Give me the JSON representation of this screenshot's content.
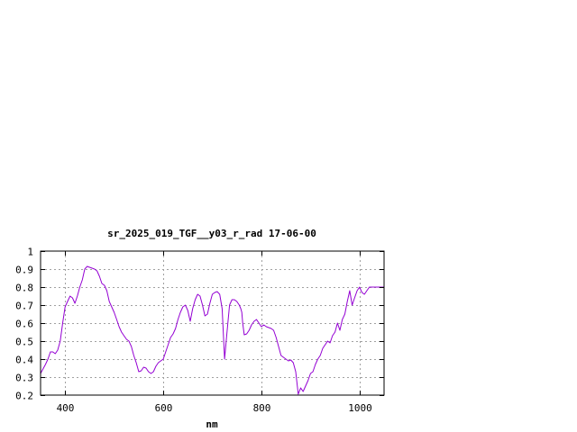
{
  "chart_data": {
    "type": "line",
    "title": "sr_2025_019_TGF__y03_r_rad 17-06-00",
    "xlabel": "nm",
    "ylabel": "",
    "xlim": [
      350,
      1050
    ],
    "ylim": [
      0.2,
      1.0
    ],
    "x_ticks": [
      400,
      600,
      800,
      1000
    ],
    "x_tick_labels": [
      "400",
      "600",
      "800",
      "1000"
    ],
    "y_ticks": [
      0.2,
      0.3,
      0.4,
      0.5,
      0.6,
      0.7,
      0.8,
      0.9,
      1.0
    ],
    "y_tick_labels": [
      "0.2",
      "0.3",
      "0.4",
      "0.5",
      "0.6",
      "0.7",
      "0.8",
      "0.9",
      "1"
    ],
    "grid": true,
    "legend": "none",
    "line_color": "#9400d3",
    "series": [
      {
        "x": [
          350,
          360,
          365,
          370,
          375,
          380,
          385,
          390,
          395,
          400,
          405,
          410,
          415,
          420,
          425,
          430,
          435,
          440,
          445,
          450,
          455,
          460,
          465,
          470,
          475,
          480,
          485,
          490,
          495,
          500,
          505,
          510,
          515,
          520,
          525,
          530,
          535,
          540,
          545,
          550,
          555,
          560,
          565,
          570,
          575,
          580,
          585,
          590,
          595,
          600,
          605,
          610,
          615,
          620,
          625,
          630,
          635,
          640,
          645,
          650,
          655,
          660,
          665,
          670,
          675,
          680,
          685,
          690,
          695,
          700,
          705,
          710,
          715,
          720,
          725,
          730,
          735,
          740,
          745,
          750,
          755,
          758,
          760,
          762,
          765,
          770,
          775,
          780,
          785,
          790,
          795,
          800,
          805,
          810,
          815,
          820,
          825,
          830,
          835,
          840,
          845,
          850,
          855,
          860,
          865,
          870,
          875,
          880,
          885,
          890,
          895,
          900,
          905,
          910,
          915,
          920,
          925,
          930,
          935,
          940,
          945,
          950,
          955,
          960,
          965,
          970,
          975,
          980,
          985,
          990,
          995,
          1000,
          1005,
          1010,
          1015,
          1020,
          1025,
          1030,
          1035,
          1040,
          1045,
          1050
        ],
        "y": [
          0.32,
          0.37,
          0.4,
          0.44,
          0.44,
          0.43,
          0.45,
          0.5,
          0.6,
          0.69,
          0.72,
          0.75,
          0.74,
          0.71,
          0.75,
          0.8,
          0.84,
          0.9,
          0.915,
          0.91,
          0.905,
          0.9,
          0.89,
          0.86,
          0.82,
          0.81,
          0.78,
          0.72,
          0.69,
          0.66,
          0.62,
          0.58,
          0.55,
          0.53,
          0.51,
          0.5,
          0.47,
          0.42,
          0.38,
          0.33,
          0.335,
          0.355,
          0.35,
          0.33,
          0.32,
          0.33,
          0.36,
          0.38,
          0.39,
          0.4,
          0.44,
          0.48,
          0.52,
          0.54,
          0.57,
          0.62,
          0.66,
          0.69,
          0.7,
          0.67,
          0.61,
          0.68,
          0.73,
          0.76,
          0.75,
          0.7,
          0.64,
          0.65,
          0.71,
          0.76,
          0.77,
          0.775,
          0.76,
          0.68,
          0.4,
          0.55,
          0.7,
          0.73,
          0.73,
          0.72,
          0.7,
          0.68,
          0.66,
          0.6,
          0.535,
          0.54,
          0.56,
          0.59,
          0.61,
          0.62,
          0.6,
          0.58,
          0.59,
          0.58,
          0.575,
          0.57,
          0.56,
          0.52,
          0.47,
          0.42,
          0.41,
          0.4,
          0.39,
          0.395,
          0.38,
          0.33,
          0.205,
          0.24,
          0.22,
          0.25,
          0.28,
          0.32,
          0.33,
          0.37,
          0.4,
          0.42,
          0.46,
          0.48,
          0.5,
          0.49,
          0.53,
          0.55,
          0.6,
          0.56,
          0.62,
          0.65,
          0.72,
          0.78,
          0.7,
          0.74,
          0.78,
          0.8,
          0.77,
          0.76,
          0.78,
          0.8,
          0.8,
          0.8,
          0.8,
          0.8,
          0.8,
          0.8
        ]
      }
    ]
  }
}
